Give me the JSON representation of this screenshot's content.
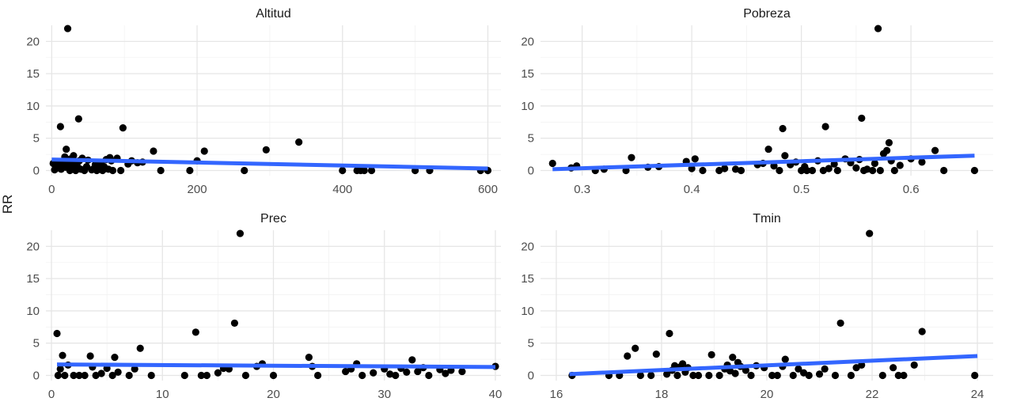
{
  "chart_data": {
    "type": "scatter",
    "ylabel": "RR",
    "ylim": [
      -0.8,
      22.5
    ],
    "yticks": [
      0,
      5,
      10,
      15,
      20
    ],
    "panels": [
      {
        "title": "Altitud",
        "xlim": [
          -8,
          618
        ],
        "xticks": [
          0,
          200,
          400,
          600
        ],
        "fit": [
          [
            0,
            1.7
          ],
          [
            600,
            0.3
          ]
        ],
        "points": [
          [
            2,
            1.1
          ],
          [
            4,
            0.1
          ],
          [
            5,
            0.9
          ],
          [
            6,
            0.3
          ],
          [
            8,
            1.3
          ],
          [
            10,
            0.6
          ],
          [
            12,
            6.8
          ],
          [
            13,
            0.2
          ],
          [
            15,
            1.4
          ],
          [
            16,
            0.9
          ],
          [
            18,
            2.1
          ],
          [
            19,
            0.5
          ],
          [
            20,
            3.3
          ],
          [
            22,
            22.0
          ],
          [
            23,
            1.0
          ],
          [
            25,
            0.0
          ],
          [
            26,
            1.8
          ],
          [
            28,
            0.4
          ],
          [
            30,
            2.3
          ],
          [
            31,
            1.2
          ],
          [
            33,
            0.0
          ],
          [
            35,
            0.7
          ],
          [
            37,
            8.0
          ],
          [
            38,
            1.5
          ],
          [
            40,
            0.2
          ],
          [
            42,
            1.9
          ],
          [
            45,
            0.0
          ],
          [
            48,
            0.6
          ],
          [
            50,
            1.6
          ],
          [
            55,
            0.1
          ],
          [
            58,
            0.3
          ],
          [
            60,
            0.9
          ],
          [
            62,
            0.0
          ],
          [
            65,
            0.4
          ],
          [
            68,
            1.1
          ],
          [
            70,
            0.0
          ],
          [
            72,
            0.6
          ],
          [
            75,
            1.7
          ],
          [
            78,
            0.2
          ],
          [
            80,
            2.0
          ],
          [
            82,
            1.5
          ],
          [
            84,
            0.0
          ],
          [
            90,
            1.9
          ],
          [
            95,
            0.0
          ],
          [
            98,
            6.6
          ],
          [
            105,
            1.0
          ],
          [
            110,
            1.5
          ],
          [
            118,
            1.2
          ],
          [
            125,
            1.3
          ],
          [
            140,
            3.0
          ],
          [
            150,
            0.0
          ],
          [
            190,
            0.0
          ],
          [
            200,
            1.5
          ],
          [
            210,
            3.0
          ],
          [
            265,
            0.0
          ],
          [
            295,
            3.2
          ],
          [
            340,
            4.4
          ],
          [
            400,
            0.0
          ],
          [
            420,
            0.0
          ],
          [
            425,
            0.0
          ],
          [
            430,
            0.0
          ],
          [
            440,
            0.0
          ],
          [
            500,
            0.0
          ],
          [
            520,
            0.0
          ],
          [
            590,
            0.0
          ],
          [
            600,
            0.0
          ]
        ]
      },
      {
        "title": "Pobreza",
        "xlim": [
          0.262,
          0.675
        ],
        "xticks": [
          0.3,
          0.4,
          0.5,
          0.6
        ],
        "xticklabels": [
          "0.3",
          "0.4",
          "0.5",
          "0.6"
        ],
        "fit": [
          [
            0.273,
            0.2
          ],
          [
            0.658,
            2.3
          ]
        ],
        "points": [
          [
            0.273,
            1.1
          ],
          [
            0.29,
            0.4
          ],
          [
            0.295,
            0.7
          ],
          [
            0.312,
            0.0
          ],
          [
            0.32,
            0.2
          ],
          [
            0.34,
            0.0
          ],
          [
            0.345,
            2.0
          ],
          [
            0.36,
            0.5
          ],
          [
            0.37,
            0.6
          ],
          [
            0.395,
            1.4
          ],
          [
            0.4,
            0.3
          ],
          [
            0.403,
            1.8
          ],
          [
            0.41,
            0.0
          ],
          [
            0.425,
            0.0
          ],
          [
            0.43,
            0.3
          ],
          [
            0.44,
            0.2
          ],
          [
            0.445,
            0.0
          ],
          [
            0.46,
            0.9
          ],
          [
            0.465,
            1.1
          ],
          [
            0.47,
            3.3
          ],
          [
            0.475,
            0.7
          ],
          [
            0.48,
            0.0
          ],
          [
            0.483,
            6.5
          ],
          [
            0.485,
            2.3
          ],
          [
            0.49,
            0.9
          ],
          [
            0.495,
            1.3
          ],
          [
            0.5,
            0.0
          ],
          [
            0.503,
            0.6
          ],
          [
            0.505,
            0.0
          ],
          [
            0.51,
            0.0
          ],
          [
            0.515,
            1.5
          ],
          [
            0.52,
            0.0
          ],
          [
            0.522,
            6.8
          ],
          [
            0.525,
            0.3
          ],
          [
            0.53,
            1.0
          ],
          [
            0.533,
            0.0
          ],
          [
            0.54,
            1.8
          ],
          [
            0.545,
            1.2
          ],
          [
            0.55,
            0.4
          ],
          [
            0.553,
            1.7
          ],
          [
            0.555,
            8.1
          ],
          [
            0.557,
            0.0
          ],
          [
            0.56,
            0.2
          ],
          [
            0.565,
            0.0
          ],
          [
            0.567,
            1.1
          ],
          [
            0.57,
            22.0
          ],
          [
            0.572,
            0.0
          ],
          [
            0.575,
            2.6
          ],
          [
            0.578,
            3.1
          ],
          [
            0.58,
            4.3
          ],
          [
            0.582,
            1.5
          ],
          [
            0.585,
            0.0
          ],
          [
            0.59,
            0.8
          ],
          [
            0.6,
            1.8
          ],
          [
            0.61,
            1.3
          ],
          [
            0.622,
            3.1
          ],
          [
            0.63,
            0.0
          ],
          [
            0.658,
            0.0
          ]
        ]
      },
      {
        "title": "Prec",
        "xlim": [
          -0.5,
          40.5
        ],
        "xticks": [
          0,
          10,
          20,
          30,
          40
        ],
        "fit": [
          [
            0.5,
            1.7
          ],
          [
            40,
            1.3
          ]
        ],
        "points": [
          [
            0.5,
            6.5
          ],
          [
            0.6,
            0.0
          ],
          [
            0.8,
            1.0
          ],
          [
            1.0,
            3.1
          ],
          [
            1.2,
            0.0
          ],
          [
            1.5,
            1.6
          ],
          [
            2,
            0.0
          ],
          [
            2.5,
            0.0
          ],
          [
            3,
            0.0
          ],
          [
            3.5,
            3.0
          ],
          [
            3.7,
            1.3
          ],
          [
            4,
            0.0
          ],
          [
            4.5,
            0.3
          ],
          [
            5,
            1.1
          ],
          [
            5.5,
            0.0
          ],
          [
            5.7,
            2.8
          ],
          [
            6,
            0.5
          ],
          [
            7,
            0.0
          ],
          [
            7.5,
            1.0
          ],
          [
            8,
            4.2
          ],
          [
            9,
            0.0
          ],
          [
            12,
            0.0
          ],
          [
            13,
            6.7
          ],
          [
            13.5,
            0.0
          ],
          [
            14,
            0.0
          ],
          [
            15,
            0.4
          ],
          [
            15.5,
            1.1
          ],
          [
            16,
            1.0
          ],
          [
            16.5,
            8.1
          ],
          [
            17,
            22.0
          ],
          [
            17.5,
            0.0
          ],
          [
            18.5,
            1.4
          ],
          [
            19,
            1.8
          ],
          [
            20,
            0.0
          ],
          [
            23.2,
            2.8
          ],
          [
            23.5,
            1.4
          ],
          [
            24,
            0.0
          ],
          [
            26.5,
            0.6
          ],
          [
            27,
            1.0
          ],
          [
            27.5,
            1.8
          ],
          [
            28,
            0.0
          ],
          [
            29,
            0.4
          ],
          [
            30,
            1.0
          ],
          [
            30.5,
            0.2
          ],
          [
            31,
            0.0
          ],
          [
            31.5,
            1.1
          ],
          [
            32,
            0.5
          ],
          [
            32.5,
            2.4
          ],
          [
            33,
            0.6
          ],
          [
            33.5,
            1.2
          ],
          [
            34,
            0.0
          ],
          [
            35,
            0.9
          ],
          [
            35.5,
            0.3
          ],
          [
            36,
            0.8
          ],
          [
            37,
            0.6
          ],
          [
            40,
            1.4
          ]
        ]
      },
      {
        "title": "Tmin",
        "xlim": [
          15.7,
          24.3
        ],
        "xticks": [
          16,
          18,
          20,
          22,
          24
        ],
        "fit": [
          [
            16.25,
            0.2
          ],
          [
            24,
            3.0
          ]
        ],
        "points": [
          [
            16.3,
            0.0
          ],
          [
            17,
            0.0
          ],
          [
            17.2,
            0.0
          ],
          [
            17.35,
            3.0
          ],
          [
            17.5,
            4.2
          ],
          [
            17.6,
            0.0
          ],
          [
            17.8,
            0.0
          ],
          [
            17.9,
            3.3
          ],
          [
            18.1,
            0.2
          ],
          [
            18.15,
            6.5
          ],
          [
            18.2,
            0.8
          ],
          [
            18.25,
            1.5
          ],
          [
            18.3,
            0.0
          ],
          [
            18.35,
            1.3
          ],
          [
            18.4,
            1.8
          ],
          [
            18.45,
            0.5
          ],
          [
            18.5,
            1.2
          ],
          [
            18.6,
            0.0
          ],
          [
            18.7,
            0.0
          ],
          [
            18.9,
            0.0
          ],
          [
            18.95,
            3.2
          ],
          [
            19.1,
            0.0
          ],
          [
            19.2,
            1.0
          ],
          [
            19.25,
            1.6
          ],
          [
            19.3,
            0.7
          ],
          [
            19.35,
            2.8
          ],
          [
            19.4,
            0.3
          ],
          [
            19.45,
            2.0
          ],
          [
            19.5,
            1.4
          ],
          [
            19.6,
            0.8
          ],
          [
            19.7,
            0.0
          ],
          [
            19.8,
            1.5
          ],
          [
            19.95,
            1.2
          ],
          [
            20.1,
            0.0
          ],
          [
            20.2,
            0.0
          ],
          [
            20.3,
            1.4
          ],
          [
            20.35,
            2.5
          ],
          [
            20.5,
            0.0
          ],
          [
            20.6,
            1.0
          ],
          [
            20.7,
            0.4
          ],
          [
            20.8,
            0.0
          ],
          [
            21,
            0.2
          ],
          [
            21.1,
            1.0
          ],
          [
            21.3,
            0.0
          ],
          [
            21.4,
            8.1
          ],
          [
            21.6,
            0.0
          ],
          [
            21.7,
            1.2
          ],
          [
            21.8,
            1.6
          ],
          [
            21.95,
            22.0
          ],
          [
            22.2,
            0.0
          ],
          [
            22.4,
            1.2
          ],
          [
            22.5,
            0.0
          ],
          [
            22.6,
            0.0
          ],
          [
            22.8,
            1.6
          ],
          [
            22.95,
            6.8
          ],
          [
            23.95,
            0.0
          ]
        ]
      }
    ]
  }
}
